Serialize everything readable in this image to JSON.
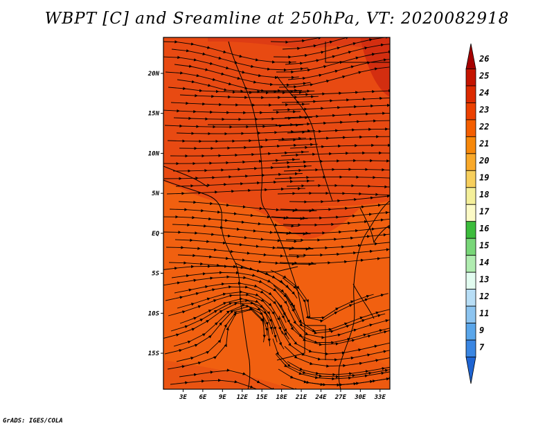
{
  "title": "WBPT [C] and Sreamline at 250hPa, VT: 2020082918",
  "credit": "GrADS: IGES/COLA",
  "map": {
    "lat_labels": [
      {
        "lat": 20,
        "label": "20N"
      },
      {
        "lat": 15,
        "label": "15N"
      },
      {
        "lat": 10,
        "label": "10N"
      },
      {
        "lat": 5,
        "label": "5N"
      },
      {
        "lat": 0,
        "label": "EQ"
      },
      {
        "lat": -5,
        "label": "5S"
      },
      {
        "lat": -10,
        "label": "10S"
      },
      {
        "lat": -15,
        "label": "15S"
      }
    ],
    "lon_labels": [
      {
        "lon": 3,
        "label": "3E"
      },
      {
        "lon": 6,
        "label": "6E"
      },
      {
        "lon": 9,
        "label": "9E"
      },
      {
        "lon": 12,
        "label": "12E"
      },
      {
        "lon": 15,
        "label": "15E"
      },
      {
        "lon": 18,
        "label": "18E"
      },
      {
        "lon": 21,
        "label": "21E"
      },
      {
        "lon": 24,
        "label": "24E"
      },
      {
        "lon": 27,
        "label": "27E"
      },
      {
        "lon": 30,
        "label": "30E"
      },
      {
        "lon": 33,
        "label": "33E"
      }
    ],
    "lat_range": [
      -19.5,
      24.5
    ],
    "lon_range": [
      0,
      34.5
    ]
  },
  "colorbar": {
    "labels": [
      "26",
      "25",
      "24",
      "23",
      "22",
      "21",
      "20",
      "19",
      "18",
      "17",
      "16",
      "15",
      "14",
      "13",
      "12",
      "11",
      "9",
      "7"
    ],
    "colors": [
      "#a50000",
      "#c41400",
      "#dc2a00",
      "#ec4000",
      "#f45e00",
      "#f7880a",
      "#f9a92a",
      "#f7cf5d",
      "#f4ef9a",
      "#fcfac6",
      "#3cbc3c",
      "#78d678",
      "#b0ecb0",
      "#e2fcf0",
      "#b8def6",
      "#8cc4f0",
      "#5aa6ea",
      "#3a86e2",
      "#1e64d2"
    ]
  }
}
